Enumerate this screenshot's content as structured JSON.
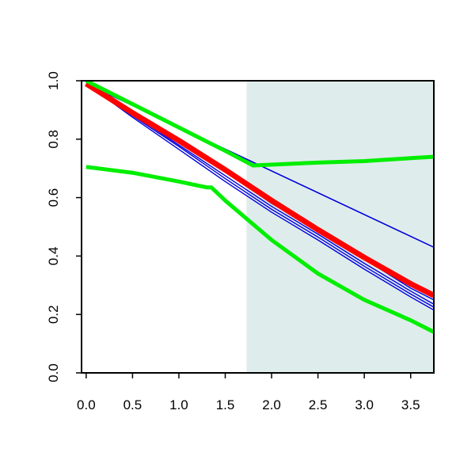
{
  "chart_data": {
    "type": "line",
    "title": "",
    "xlabel": "",
    "ylabel": "",
    "xlim": [
      -0.05,
      3.75
    ],
    "ylim": [
      0.0,
      1.0
    ],
    "x_ticks": [
      0.0,
      0.5,
      1.0,
      1.5,
      2.0,
      2.5,
      3.0,
      3.5
    ],
    "x_tick_labels": [
      "0.0",
      "0.5",
      "1.0",
      "1.5",
      "2.0",
      "2.5",
      "3.0",
      "3.5"
    ],
    "y_ticks": [
      0.0,
      0.2,
      0.4,
      0.6,
      0.8,
      1.0
    ],
    "y_tick_labels": [
      "0.0",
      "0.2",
      "0.4",
      "0.6",
      "0.8",
      "1.0"
    ],
    "grid": false,
    "legend": "none",
    "shaded_region": {
      "x_start": 1.73,
      "x_end": 3.75,
      "color": "#dfecec"
    },
    "series": [
      {
        "color": "#0000dd",
        "width": 1.6,
        "x": [
          0.0,
          3.75
        ],
        "y": [
          0.99,
          0.43
        ]
      },
      {
        "color": "#0000dd",
        "width": 1.4,
        "x": [
          0.0,
          0.5,
          1.0,
          1.5,
          2.0,
          2.5,
          3.0,
          3.5,
          3.75
        ],
        "y": [
          0.99,
          0.89,
          0.79,
          0.69,
          0.58,
          0.49,
          0.39,
          0.29,
          0.25
        ]
      },
      {
        "color": "#0000dd",
        "width": 1.4,
        "x": [
          0.0,
          0.5,
          1.0,
          1.5,
          2.0,
          2.5,
          3.0,
          3.5,
          3.75
        ],
        "y": [
          0.99,
          0.885,
          0.78,
          0.675,
          0.57,
          0.475,
          0.375,
          0.28,
          0.235
        ]
      },
      {
        "color": "#0000dd",
        "width": 1.4,
        "x": [
          0.0,
          0.5,
          1.0,
          1.5,
          2.0,
          2.5,
          3.0,
          3.5,
          3.75
        ],
        "y": [
          0.99,
          0.88,
          0.775,
          0.665,
          0.56,
          0.465,
          0.365,
          0.27,
          0.225
        ]
      },
      {
        "color": "#0000dd",
        "width": 1.4,
        "x": [
          0.0,
          0.5,
          1.0,
          1.5,
          2.0,
          2.5,
          3.0,
          3.5,
          3.75
        ],
        "y": [
          0.99,
          0.875,
          0.765,
          0.655,
          0.55,
          0.455,
          0.355,
          0.26,
          0.215
        ]
      },
      {
        "color": "#ff0000",
        "width": 7,
        "x": [
          0.0,
          0.5,
          1.0,
          1.5,
          2.0,
          2.5,
          3.0,
          3.5,
          3.75
        ],
        "y": [
          0.99,
          0.89,
          0.795,
          0.695,
          0.59,
          0.49,
          0.395,
          0.305,
          0.265
        ]
      },
      {
        "color": "#00ee00",
        "width": 5,
        "x": [
          0.0,
          0.5,
          1.0,
          1.5,
          1.8,
          2.5,
          3.0,
          3.5,
          3.75
        ],
        "y": [
          1.0,
          0.92,
          0.84,
          0.76,
          0.71,
          0.72,
          0.725,
          0.735,
          0.74
        ]
      },
      {
        "color": "#00ee00",
        "width": 5,
        "x": [
          0.0,
          0.5,
          1.0,
          1.3,
          1.35,
          1.5,
          2.0,
          2.5,
          3.0,
          3.5,
          3.75
        ],
        "y": [
          0.705,
          0.685,
          0.655,
          0.635,
          0.635,
          0.59,
          0.455,
          0.34,
          0.25,
          0.18,
          0.14
        ]
      }
    ]
  }
}
